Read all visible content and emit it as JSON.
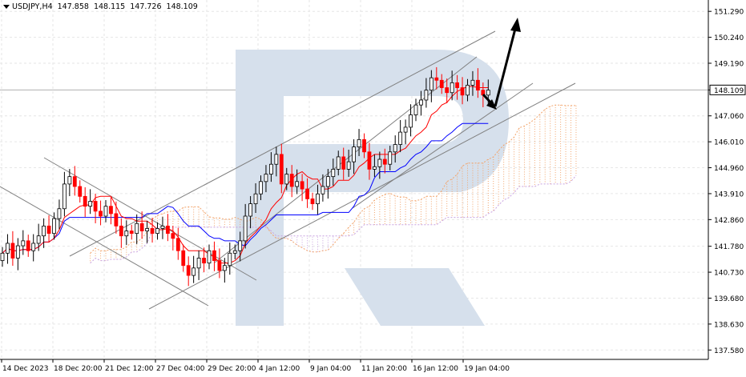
{
  "header": {
    "symbol": "USDJPY,H4",
    "open": "147.858",
    "high": "148.115",
    "low": "147.726",
    "close": "148.109"
  },
  "colors": {
    "bull": "#000000",
    "bear": "#ff0000",
    "kijun": "#0000ff",
    "tenkan": "#ff0000",
    "cloud_bull": "#f2a46b",
    "cloud_bear": "#c8a2e0",
    "channel": "#808080",
    "grid": "#e6e6e6",
    "watermark": "#d6e0ec",
    "price_tag_bg": "#ffffff"
  },
  "chart_data": {
    "type": "candlestick",
    "title": "",
    "symbol": "USDJPY,H4",
    "y_axis_ticks": [
      "151.290",
      "150.240",
      "149.190",
      "148.109",
      "147.060",
      "146.010",
      "144.960",
      "143.910",
      "142.860",
      "141.780",
      "140.730",
      "139.680",
      "138.630",
      "137.580"
    ],
    "y_axis_values": [
      151.29,
      150.24,
      149.19,
      148.109,
      147.06,
      146.01,
      144.96,
      143.91,
      142.86,
      141.78,
      140.73,
      139.68,
      138.63,
      137.58
    ],
    "ylim": [
      137.2,
      151.75
    ],
    "current_price": "148.109",
    "x_axis_ticks": [
      "14 Dec 2023",
      "18 Dec 20:00",
      "21 Dec 12:00",
      "27 Dec 04:00",
      "29 Dec 20:00",
      "4 Jan 12:00",
      "9 Jan 04:00",
      "11 Jan 20:00",
      "16 Jan 12:00",
      "19 Jan 04:00"
    ],
    "grid": true,
    "closes": [
      141.5,
      141.9,
      141.3,
      141.8,
      142.0,
      141.6,
      141.9,
      142.2,
      142.6,
      142.3,
      142.9,
      143.3,
      144.3,
      144.6,
      144.2,
      143.8,
      143.4,
      143.6,
      143.2,
      143.0,
      143.4,
      143.1,
      142.6,
      142.2,
      142.4,
      142.3,
      142.7,
      142.4,
      142.5,
      142.3,
      142.5,
      142.6,
      142.3,
      142.1,
      141.6,
      141.0,
      140.6,
      140.9,
      141.3,
      141.1,
      141.6,
      141.2,
      140.8,
      141.0,
      141.5,
      141.6,
      142.0,
      143.0,
      143.5,
      143.9,
      144.4,
      144.7,
      145.1,
      145.5,
      144.3,
      144.7,
      144.2,
      144.4,
      144.1,
      143.7,
      143.5,
      143.9,
      144.2,
      144.6,
      144.9,
      145.4,
      144.9,
      145.2,
      145.8,
      146.1,
      145.6,
      144.9,
      145.0,
      145.3,
      145.1,
      145.6,
      145.9,
      146.4,
      146.6,
      147.1,
      147.5,
      147.7,
      148.1,
      148.6,
      148.5,
      148.2,
      148.0,
      148.4,
      148.2,
      147.9,
      148.3,
      148.5,
      148.1,
      147.9,
      148.1
    ],
    "annotation_arrows": [
      "down to 147.4",
      "up to 151.4"
    ]
  }
}
